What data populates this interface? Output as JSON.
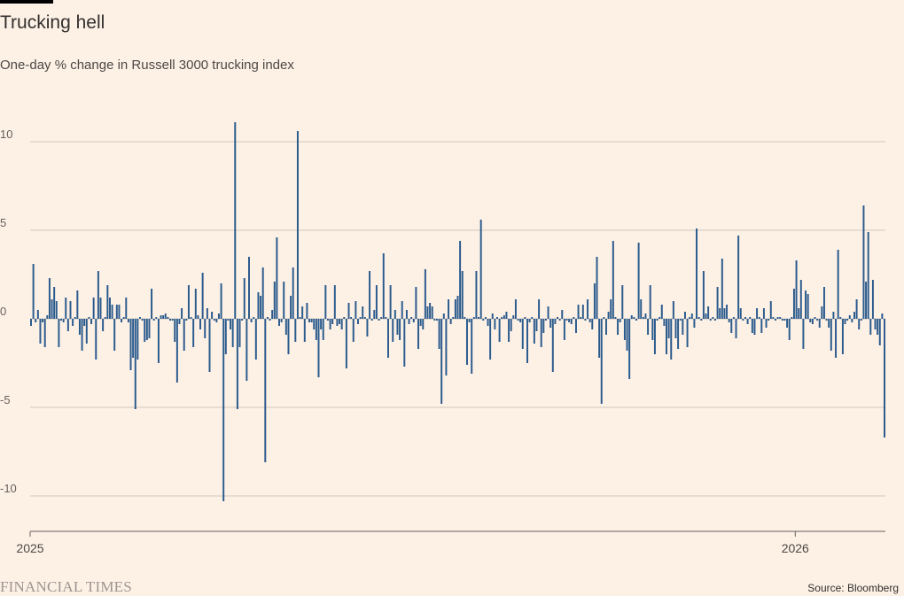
{
  "header": {
    "title": "Trucking hell",
    "subtitle": "One-day % change in Russell 3000 trucking index"
  },
  "footer": {
    "logo": "FINANCIAL TIMES",
    "source": "Source: Bloomberg"
  },
  "colors": {
    "bar": "#2a5a8c",
    "grid": "#cfc7bd",
    "axis": "#66605c"
  },
  "chart_data": {
    "type": "bar",
    "title": "Trucking hell",
    "subtitle": "One-day % change in Russell 3000 trucking index",
    "xlabel": "",
    "ylabel": "",
    "ylim": [
      -12,
      12
    ],
    "yticks": [
      10,
      5,
      0,
      -5,
      -10
    ],
    "ytick_labels": [
      "10",
      "5",
      "0",
      "-5",
      "-10"
    ],
    "x_range": [
      "2025-01-01",
      "2026-02-13"
    ],
    "xticks": [
      {
        "date": "2025-01-01",
        "label": "2025"
      },
      {
        "date": "2026-01-01",
        "label": "2026"
      }
    ],
    "grid": true,
    "values": [
      -0.4,
      3.1,
      -0.2,
      0.5,
      -1.4,
      -0.2,
      -1.6,
      0.2,
      2.3,
      1.1,
      1.8,
      1.0,
      -1.6,
      -0.1,
      -0.2,
      1.2,
      -0.7,
      1.0,
      -0.4,
      0.1,
      1.6,
      -0.9,
      -1.8,
      -0.4,
      -1.4,
      0.1,
      -0.3,
      1.2,
      -2.3,
      2.7,
      1.2,
      -0.7,
      0.1,
      1.9,
      1.2,
      0.8,
      -1.8,
      0.8,
      0.8,
      -0.2,
      0.1,
      1.2,
      -0.2,
      -2.9,
      -2.2,
      -5.1,
      -2.3,
      0.1,
      -0.1,
      -1.3,
      -1.2,
      -1.1,
      1.7,
      -0.1,
      0.1,
      -2.5,
      0.2,
      0.2,
      0.3,
      0.1,
      -0.1,
      -0.1,
      -1.3,
      -3.6,
      -0.3,
      0.6,
      -1.8,
      -0.1,
      1.9,
      0.1,
      -1.6,
      1.7,
      0.2,
      -0.6,
      2.6,
      -1.1,
      0.6,
      -3.0,
      0.4,
      -0.1,
      -0.2,
      0.3,
      2.0,
      -10.3,
      -2.0,
      -0.1,
      -0.6,
      -1.6,
      11.1,
      -5.1,
      -1.6,
      -0.1,
      2.3,
      -3.5,
      3.5,
      -0.2,
      0.1,
      -2.3,
      1.5,
      1.3,
      2.9,
      -8.1,
      0.1,
      -0.1,
      0.5,
      2.1,
      4.6,
      -0.4,
      -0.2,
      2.1,
      -0.9,
      -2.0,
      1.3,
      2.9,
      -1.3,
      10.6,
      0.1,
      0.7,
      -1.3,
      0.9,
      -0.2,
      -0.2,
      -0.6,
      -1.2,
      -3.3,
      -0.6,
      -1.2,
      1.9,
      -0.1,
      -0.6,
      -0.3,
      1.9,
      -0.4,
      -0.3,
      -0.6,
      0.1,
      -2.8,
      0.9,
      0.1,
      -1.3,
      1.0,
      -0.3,
      0.1,
      0.7,
      0.1,
      -1.0,
      2.7,
      -0.1,
      0.5,
      1.9,
      -0.1,
      0.1,
      3.7,
      0.1,
      -2.2,
      1.9,
      -1.3,
      0.5,
      -0.9,
      -1.2,
      1.0,
      -2.7,
      0.5,
      -0.3,
      0.1,
      -0.2,
      1.8,
      -1.7,
      -0.4,
      -0.6,
      2.8,
      0.7,
      0.9,
      0.7,
      -0.1,
      -0.1,
      -1.7,
      -4.8,
      0.3,
      -3.2,
      1.1,
      -0.3,
      0.1,
      1.1,
      1.3,
      4.4,
      2.7,
      0.1,
      -2.6,
      -0.2,
      -3.1,
      0.1,
      2.7,
      0.1,
      5.6,
      -0.1,
      0.1,
      -0.4,
      -2.3,
      0.3,
      -0.6,
      0.1,
      -1.3,
      0.1,
      0.2,
      0.4,
      -1.3,
      -0.7,
      0.2,
      1.1,
      -0.1,
      -0.2,
      -1.7,
      0.1,
      -2.5,
      -0.2,
      0.1,
      -1.4,
      -0.7,
      1.1,
      -1.6,
      -0.8,
      -0.1,
      0.7,
      -0.5,
      -3.0,
      -0.3,
      0.1,
      -0.1,
      0.5,
      -1.2,
      -0.1,
      -0.2,
      -0.3,
      0.1,
      -0.8,
      0.8,
      0.1,
      0.8,
      -0.1,
      1.1,
      -0.2,
      -0.6,
      2.0,
      3.5,
      -2.2,
      -4.8,
      0.1,
      -0.9,
      0.4,
      1.1,
      4.4,
      0.1,
      -0.9,
      -0.2,
      1.9,
      -1.2,
      -1.8,
      -3.4,
      0.2,
      0.1,
      -0.1,
      4.3,
      1.1,
      0.1,
      0.3,
      -0.9,
      1.9,
      -1.2,
      -2.0,
      -0.1,
      0.1,
      0.8,
      -0.4,
      -2.0,
      -1.1,
      -2.3,
      1.0,
      -1.1,
      -1.7,
      -0.1,
      -0.9,
      0.4,
      -1.6,
      0.1,
      0.3,
      -0.5,
      5.1,
      0.1,
      -0.1,
      2.7,
      0.3,
      0.7,
      -0.1,
      0.1,
      -0.1,
      1.8,
      0.6,
      3.4,
      0.6,
      0.8,
      -0.2,
      -0.8,
      0.1,
      -1.1,
      4.7,
      0.6,
      -0.1,
      0.1,
      -0.3,
      0.1,
      -0.8,
      -0.9,
      0.6,
      0.1,
      -0.8,
      0.6,
      -0.5,
      -0.1,
      1.0,
      0.1,
      -0.1,
      0.1,
      0.1,
      -0.1,
      -0.1,
      -0.5,
      -1.2,
      0.1,
      1.7,
      3.3,
      0.6,
      2.2,
      -1.7,
      1.6,
      1.4,
      -0.2,
      -0.3,
      0.1,
      -0.1,
      -0.5,
      0.7,
      1.8,
      -0.1,
      -0.5,
      -1.8,
      0.4,
      -2.2,
      3.9,
      0.1,
      -2.0,
      -0.3,
      -0.1,
      0.2,
      -0.2,
      0.4,
      1.1,
      -0.6,
      -0.1,
      6.4,
      2.1,
      4.9,
      -0.9,
      2.2,
      -0.6,
      -0.9,
      -1.5,
      0.3,
      -6.7
    ]
  }
}
